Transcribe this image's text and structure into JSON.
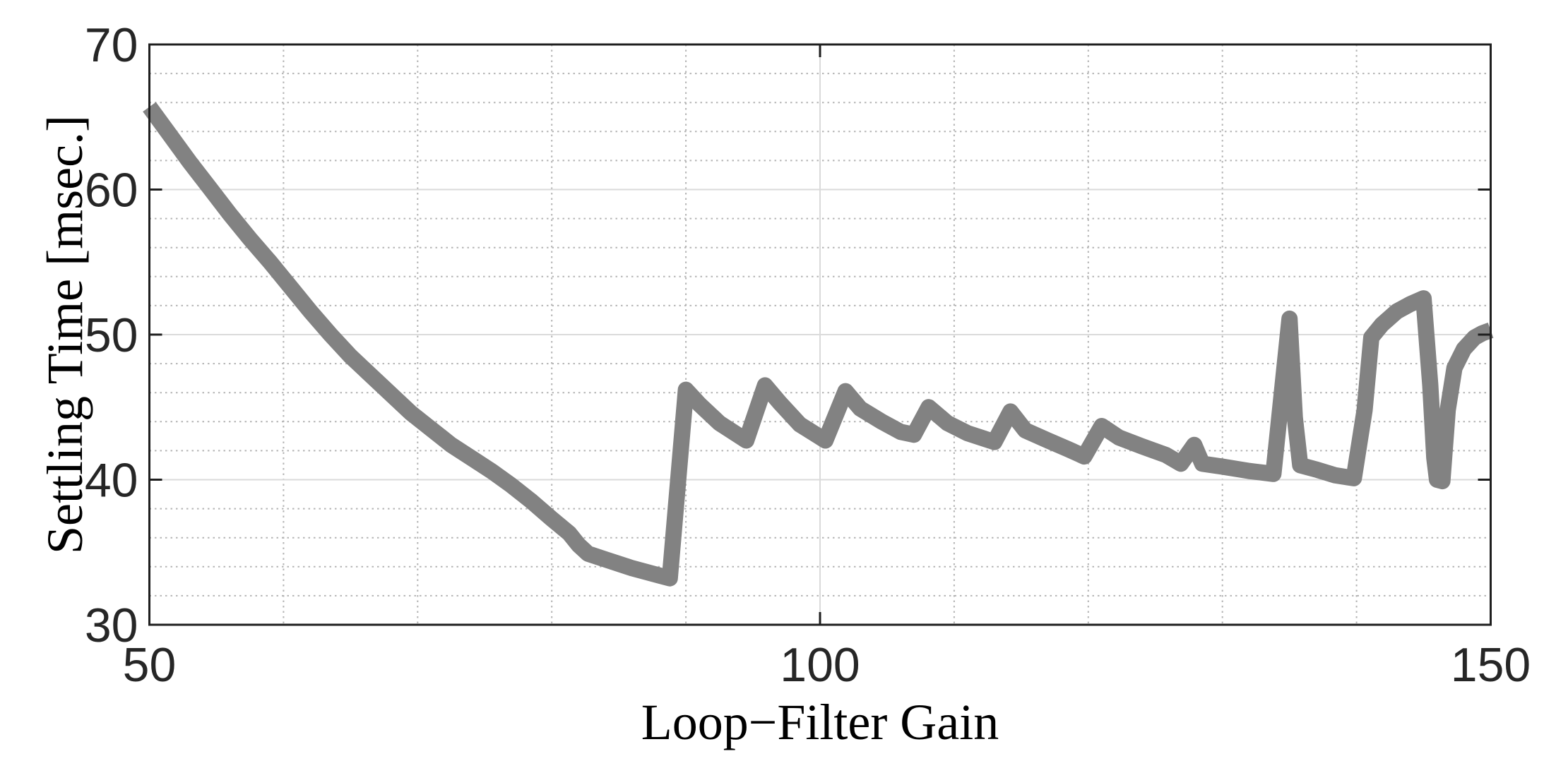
{
  "figure": {
    "background": "#ffffff",
    "line_color": "#828282",
    "axis_color": "#1f1f1f",
    "tick_label_color": "#262626",
    "grid_major_color": "#dadada",
    "grid_minor_color": "#b4b4b4"
  },
  "chart_data": {
    "type": "line",
    "title": "",
    "xlabel": "Loop−Filter Gain",
    "ylabel": "Settling Time [msec.]",
    "xlim": [
      50,
      150
    ],
    "ylim": [
      30,
      70
    ],
    "x_major_ticks": [
      50,
      100,
      150
    ],
    "y_major_ticks": [
      30,
      40,
      50,
      60,
      70
    ],
    "x_minor_grid_step": 10,
    "y_minor_grid_step": 2,
    "grid": "major solid + minor dotted, boxed axes, ticks inward mirrored",
    "legend": "none",
    "series": [
      {
        "name": "settling_time_vs_gain",
        "points": [
          [
            50,
            65.7
          ],
          [
            51.5,
            63.8
          ],
          [
            53,
            61.9
          ],
          [
            54.5,
            60.1
          ],
          [
            56,
            58.3
          ],
          [
            57.5,
            56.6
          ],
          [
            59,
            55
          ],
          [
            60.5,
            53.3
          ],
          [
            62,
            51.6
          ],
          [
            63.5,
            50
          ],
          [
            65,
            48.5
          ],
          [
            66.5,
            47.2
          ],
          [
            68,
            45.9
          ],
          [
            69.5,
            44.6
          ],
          [
            71,
            43.5
          ],
          [
            72.5,
            42.4
          ],
          [
            74,
            41.5
          ],
          [
            75.5,
            40.6
          ],
          [
            77,
            39.6
          ],
          [
            78.5,
            38.5
          ],
          [
            80,
            37.3
          ],
          [
            81.3,
            36.3
          ],
          [
            82,
            35.5
          ],
          [
            82.7,
            34.9
          ],
          [
            84,
            34.5
          ],
          [
            86,
            33.9
          ],
          [
            88,
            33.4
          ],
          [
            88.8,
            33.2
          ],
          [
            90,
            46.2
          ],
          [
            91,
            45.2
          ],
          [
            92.5,
            43.9
          ],
          [
            94.5,
            42.7
          ],
          [
            95.9,
            46.5
          ],
          [
            97,
            45.3
          ],
          [
            98.5,
            43.8
          ],
          [
            100.4,
            42.7
          ],
          [
            101.9,
            46.1
          ],
          [
            103,
            44.9
          ],
          [
            104.6,
            44
          ],
          [
            106,
            43.3
          ],
          [
            107,
            43.1
          ],
          [
            108.1,
            45
          ],
          [
            109.5,
            43.9
          ],
          [
            111,
            43.2
          ],
          [
            113,
            42.6
          ],
          [
            114.2,
            44.7
          ],
          [
            115.3,
            43.4
          ],
          [
            117,
            42.7
          ],
          [
            118.5,
            42.1
          ],
          [
            119.7,
            41.6
          ],
          [
            121,
            43.7
          ],
          [
            122.3,
            42.9
          ],
          [
            124,
            42.3
          ],
          [
            125.8,
            41.7
          ],
          [
            126.9,
            41.1
          ],
          [
            127.9,
            42.4
          ],
          [
            128.5,
            41.1
          ],
          [
            130,
            40.9
          ],
          [
            132,
            40.6
          ],
          [
            133.8,
            40.4
          ],
          [
            135,
            51.1
          ],
          [
            135.4,
            44.3
          ],
          [
            135.8,
            41
          ],
          [
            137,
            40.7
          ],
          [
            138.4,
            40.3
          ],
          [
            139.8,
            40.1
          ],
          [
            140.6,
            44.8
          ],
          [
            141.1,
            49.8
          ],
          [
            141.9,
            50.7
          ],
          [
            143,
            51.6
          ],
          [
            144,
            52.1
          ],
          [
            145,
            52.5
          ],
          [
            145.5,
            46.5
          ],
          [
            145.8,
            41.5
          ],
          [
            146,
            40
          ],
          [
            146.4,
            39.9
          ],
          [
            146.8,
            44.8
          ],
          [
            147.3,
            47.7
          ],
          [
            148,
            49
          ],
          [
            148.8,
            49.8
          ],
          [
            149.4,
            50.1
          ],
          [
            150,
            50.3
          ]
        ]
      }
    ]
  }
}
